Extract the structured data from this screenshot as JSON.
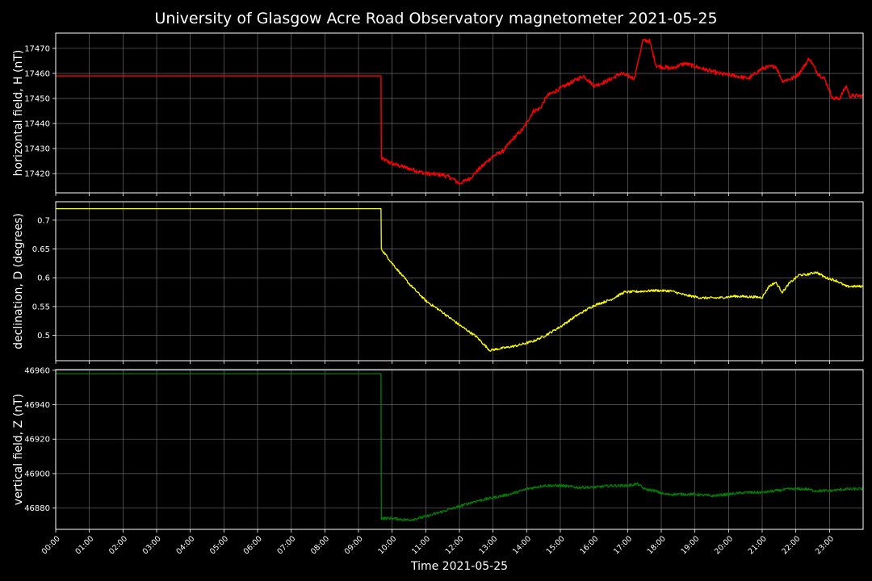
{
  "chart_data": {
    "type": "line",
    "title": "University of Glasgow Acre Road Observatory magnetometer 2021-05-25",
    "xlabel": "Time 2021-05-25",
    "x_unit": "hours",
    "xlim": [
      0,
      24
    ],
    "x_ticks": [
      "00:00",
      "01:00",
      "02:00",
      "03:00",
      "04:00",
      "05:00",
      "06:00",
      "07:00",
      "08:00",
      "09:00",
      "10:00",
      "11:00",
      "12:00",
      "13:00",
      "14:00",
      "15:00",
      "16:00",
      "17:00",
      "18:00",
      "19:00",
      "20:00",
      "21:00",
      "22:00",
      "23:00"
    ],
    "grid": true,
    "panels": [
      {
        "ylabel": "horizontal field, H (nT)",
        "color": "#ff0000",
        "ylim": [
          17412.3,
          17476.1
        ],
        "y_ticks": [
          17420,
          17430,
          17440,
          17450,
          17460,
          17470
        ],
        "noise": 0.8,
        "points": [
          [
            0,
            17459
          ],
          [
            9.67,
            17459
          ],
          [
            9.68,
            17426
          ],
          [
            10,
            17424
          ],
          [
            10.5,
            17422
          ],
          [
            11,
            17420
          ],
          [
            11.5,
            17419.5
          ],
          [
            11.8,
            17418
          ],
          [
            12,
            17416
          ],
          [
            12.3,
            17418
          ],
          [
            12.6,
            17422
          ],
          [
            13,
            17427
          ],
          [
            13.3,
            17429
          ],
          [
            13.6,
            17434
          ],
          [
            13.9,
            17438
          ],
          [
            14.2,
            17445
          ],
          [
            14.4,
            17446
          ],
          [
            14.6,
            17451
          ],
          [
            15,
            17454
          ],
          [
            15.4,
            17457
          ],
          [
            15.7,
            17459
          ],
          [
            16,
            17455
          ],
          [
            16.4,
            17457
          ],
          [
            16.8,
            17460
          ],
          [
            17.2,
            17458
          ],
          [
            17.45,
            17473
          ],
          [
            17.65,
            17473
          ],
          [
            17.85,
            17463
          ],
          [
            18.3,
            17462
          ],
          [
            18.7,
            17464
          ],
          [
            19.2,
            17462
          ],
          [
            19.7,
            17460
          ],
          [
            20.2,
            17459
          ],
          [
            20.6,
            17458
          ],
          [
            21,
            17462
          ],
          [
            21.4,
            17463
          ],
          [
            21.6,
            17457
          ],
          [
            21.9,
            17458
          ],
          [
            22.1,
            17460
          ],
          [
            22.4,
            17466
          ],
          [
            22.65,
            17460
          ],
          [
            22.85,
            17458
          ],
          [
            23.1,
            17450
          ],
          [
            23.3,
            17450
          ],
          [
            23.5,
            17455
          ],
          [
            23.6,
            17451
          ],
          [
            24,
            17451
          ]
        ]
      },
      {
        "ylabel": "declination, D (degrees)",
        "color": "#ffff00",
        "ylim": [
          0.456,
          0.732
        ],
        "y_ticks": [
          0.5,
          0.55,
          0.6,
          0.65,
          0.7
        ],
        "noise": 0.002,
        "points": [
          [
            0,
            0.72
          ],
          [
            9.67,
            0.72
          ],
          [
            9.68,
            0.65
          ],
          [
            10,
            0.625
          ],
          [
            10.5,
            0.59
          ],
          [
            11,
            0.56
          ],
          [
            11.5,
            0.54
          ],
          [
            12,
            0.518
          ],
          [
            12.5,
            0.498
          ],
          [
            12.9,
            0.474
          ],
          [
            13.3,
            0.478
          ],
          [
            13.7,
            0.482
          ],
          [
            14.2,
            0.49
          ],
          [
            14.5,
            0.498
          ],
          [
            15,
            0.515
          ],
          [
            15.5,
            0.535
          ],
          [
            16,
            0.552
          ],
          [
            16.5,
            0.562
          ],
          [
            16.9,
            0.575
          ],
          [
            17.3,
            0.576
          ],
          [
            17.8,
            0.578
          ],
          [
            18.3,
            0.577
          ],
          [
            18.7,
            0.57
          ],
          [
            19.2,
            0.565
          ],
          [
            19.7,
            0.565
          ],
          [
            20.2,
            0.568
          ],
          [
            20.6,
            0.567
          ],
          [
            21,
            0.566
          ],
          [
            21.2,
            0.585
          ],
          [
            21.4,
            0.592
          ],
          [
            21.6,
            0.575
          ],
          [
            21.8,
            0.59
          ],
          [
            22.1,
            0.605
          ],
          [
            22.3,
            0.605
          ],
          [
            22.6,
            0.61
          ],
          [
            22.9,
            0.6
          ],
          [
            23.2,
            0.595
          ],
          [
            23.5,
            0.585
          ],
          [
            24,
            0.585
          ]
        ]
      },
      {
        "ylabel": "vertical field, Z (nT)",
        "color": "#008000",
        "ylim": [
          46867.6,
          46960.4
        ],
        "y_ticks": [
          46880,
          46900,
          46920,
          46940,
          46960
        ],
        "noise": 0.8,
        "points": [
          [
            0,
            46958
          ],
          [
            9.67,
            46958
          ],
          [
            9.68,
            46874
          ],
          [
            10,
            46874
          ],
          [
            10.5,
            46873
          ],
          [
            11,
            46875
          ],
          [
            11.5,
            46878
          ],
          [
            12,
            46881
          ],
          [
            12.5,
            46884
          ],
          [
            13,
            46886
          ],
          [
            13.5,
            46888
          ],
          [
            14,
            46891
          ],
          [
            14.5,
            46893
          ],
          [
            15,
            46893
          ],
          [
            15.5,
            46892
          ],
          [
            16,
            46892
          ],
          [
            16.5,
            46893
          ],
          [
            17,
            46893
          ],
          [
            17.3,
            46894
          ],
          [
            17.5,
            46891
          ],
          [
            17.8,
            46890
          ],
          [
            18.1,
            46888
          ],
          [
            18.5,
            46888
          ],
          [
            19,
            46888
          ],
          [
            19.5,
            46887
          ],
          [
            20,
            46888
          ],
          [
            20.5,
            46889
          ],
          [
            21,
            46889
          ],
          [
            21.4,
            46890
          ],
          [
            21.8,
            46891
          ],
          [
            22.3,
            46891
          ],
          [
            22.6,
            46890
          ],
          [
            23,
            46890
          ],
          [
            23.5,
            46891
          ],
          [
            24,
            46891
          ]
        ]
      }
    ]
  }
}
